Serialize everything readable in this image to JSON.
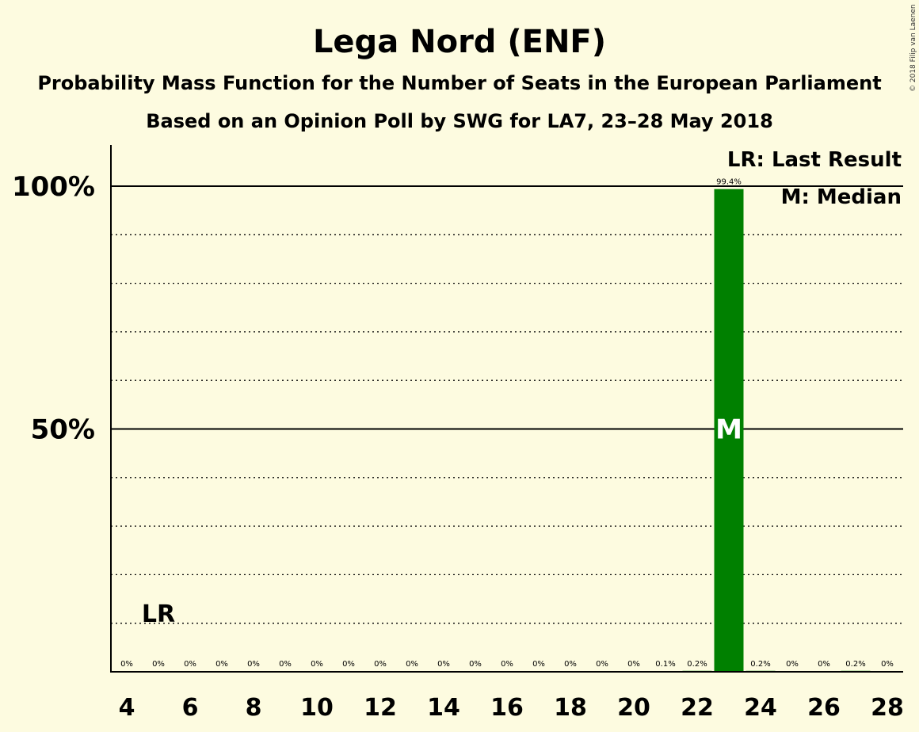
{
  "chart_data": {
    "type": "bar",
    "title": "Lega Nord (ENF)",
    "subtitle_lines": [
      "Probability Mass Function for the Number of Seats in the European Parliament",
      "Based on an Opinion Poll by SWG for LA7, 23–28 May 2018"
    ],
    "copyright": "© 2018 Filip van Laenen",
    "x": [
      4,
      5,
      6,
      7,
      8,
      9,
      10,
      11,
      12,
      13,
      14,
      15,
      16,
      17,
      18,
      19,
      20,
      21,
      22,
      23,
      24,
      25,
      26,
      27,
      28
    ],
    "values": [
      0,
      0,
      0,
      0,
      0,
      0,
      0,
      0,
      0,
      0,
      0,
      0,
      0,
      0,
      0,
      0,
      0,
      0.1,
      0.2,
      99.4,
      0.2,
      0,
      0,
      0.2,
      0
    ],
    "value_labels": [
      "0%",
      "0%",
      "0%",
      "0%",
      "0%",
      "0%",
      "0%",
      "0%",
      "0%",
      "0%",
      "0%",
      "0%",
      "0%",
      "0%",
      "0%",
      "0%",
      "0%",
      "0.1%",
      "0.2%",
      "99.4%",
      "0.2%",
      "0%",
      "0%",
      "0.2%",
      "0%"
    ],
    "x_tick_labels": [
      "4",
      "6",
      "8",
      "10",
      "12",
      "14",
      "16",
      "18",
      "20",
      "22",
      "24",
      "26",
      "28"
    ],
    "x_tick_values": [
      4,
      6,
      8,
      10,
      12,
      14,
      16,
      18,
      20,
      22,
      24,
      26,
      28
    ],
    "y_tick_labels": [
      "50%",
      "100%"
    ],
    "y_tick_values": [
      50,
      100
    ],
    "ylim": [
      0,
      110
    ],
    "xlim": [
      3.5,
      28.5
    ],
    "bar_color": "#008000",
    "grid": "dotted every 10%",
    "last_result": {
      "x": 5,
      "label": "LR"
    },
    "median": {
      "x": 23,
      "label": "M"
    },
    "legend": {
      "placement": "top-right",
      "items": [
        "LR: Last Result",
        "M: Median"
      ]
    }
  }
}
